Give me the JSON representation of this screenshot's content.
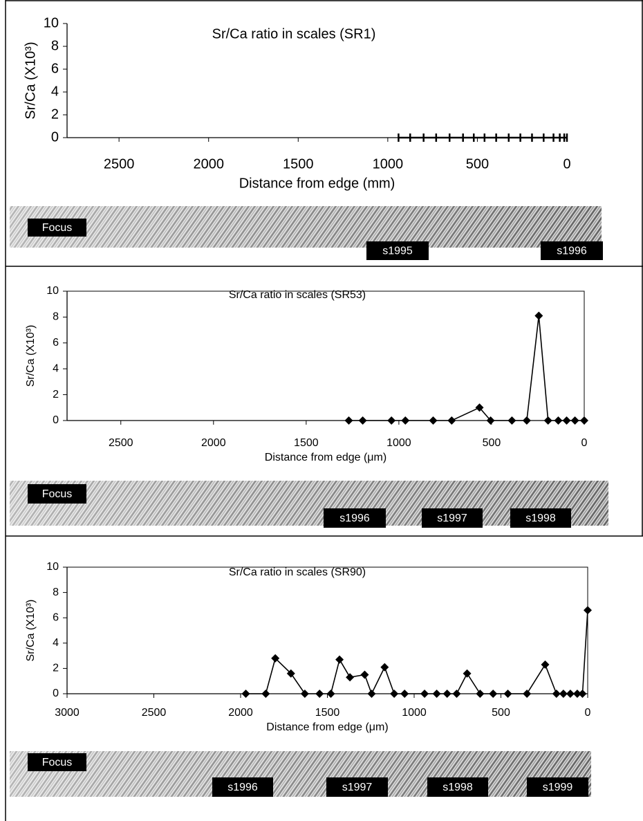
{
  "chart_data": [
    {
      "type": "line",
      "title": "Sr/Ca ratio in scales  (SR1)",
      "xlabel": "Distance from edge (mm)",
      "ylabel": "Sr/Ca  (X10³)",
      "x": [
        940,
        875,
        800,
        730,
        655,
        580,
        520,
        460,
        395,
        325,
        260,
        195,
        130,
        75,
        40,
        15,
        0
      ],
      "values": [
        0,
        0,
        0,
        0,
        0,
        0,
        0,
        0,
        0,
        0,
        0,
        0,
        0,
        0,
        0,
        0,
        0
      ],
      "xlim": [
        2790,
        0
      ],
      "ylim": [
        0,
        10
      ],
      "xticks": [
        2500,
        2000,
        1500,
        1000,
        500,
        0
      ],
      "yticks": [
        0,
        2,
        4,
        6,
        8,
        10
      ],
      "color": "#000000",
      "marker": "vline",
      "annotations": [
        "Focus",
        "s1995",
        "s1996"
      ]
    },
    {
      "type": "line",
      "title": "Sr/Ca ratio in scales  (SR53)",
      "xlabel": "Distance from edge (μm)",
      "ylabel": "Sr/Ca  (X10³)",
      "x": [
        1270,
        1195,
        1040,
        965,
        815,
        715,
        565,
        505,
        390,
        310,
        245,
        195,
        140,
        95,
        50,
        0
      ],
      "values": [
        0,
        0,
        0,
        0,
        0,
        0,
        1.0,
        0,
        0,
        0,
        8.1,
        0,
        0,
        0,
        0,
        0
      ],
      "xlim": [
        2790,
        0
      ],
      "ylim": [
        0,
        10
      ],
      "xticks": [
        2500,
        2000,
        1500,
        1000,
        500,
        0
      ],
      "yticks": [
        0,
        2,
        4,
        6,
        8,
        10
      ],
      "color": "#000000",
      "marker": "diamond",
      "annotations": [
        "Focus",
        "s1996",
        "s1997",
        "s1998"
      ]
    },
    {
      "type": "line",
      "title": "Sr/Ca ratio in scales  (SR90)",
      "xlabel": "Distance from edge (μm)",
      "ylabel": "Sr/Ca  (X10³)",
      "x": [
        1970,
        1855,
        1800,
        1710,
        1630,
        1545,
        1480,
        1430,
        1370,
        1285,
        1245,
        1170,
        1115,
        1055,
        940,
        870,
        810,
        755,
        695,
        620,
        545,
        460,
        350,
        245,
        180,
        140,
        100,
        60,
        30,
        0
      ],
      "values": [
        0,
        0,
        2.8,
        1.6,
        0,
        0,
        0,
        2.7,
        1.3,
        1.5,
        0,
        2.1,
        0,
        0,
        0,
        0,
        0,
        0,
        1.6,
        0,
        0,
        0,
        0,
        2.3,
        0,
        0,
        0,
        0,
        0,
        6.6
      ],
      "xlim": [
        3000,
        0
      ],
      "ylim": [
        0,
        10
      ],
      "xticks": [
        3000,
        2500,
        2000,
        1500,
        1000,
        500,
        0
      ],
      "yticks": [
        0,
        2,
        4,
        6,
        8,
        10
      ],
      "color": "#000000",
      "marker": "diamond",
      "annotations": [
        "Focus",
        "s1996",
        "s1997",
        "s1998",
        "s1999"
      ]
    }
  ]
}
